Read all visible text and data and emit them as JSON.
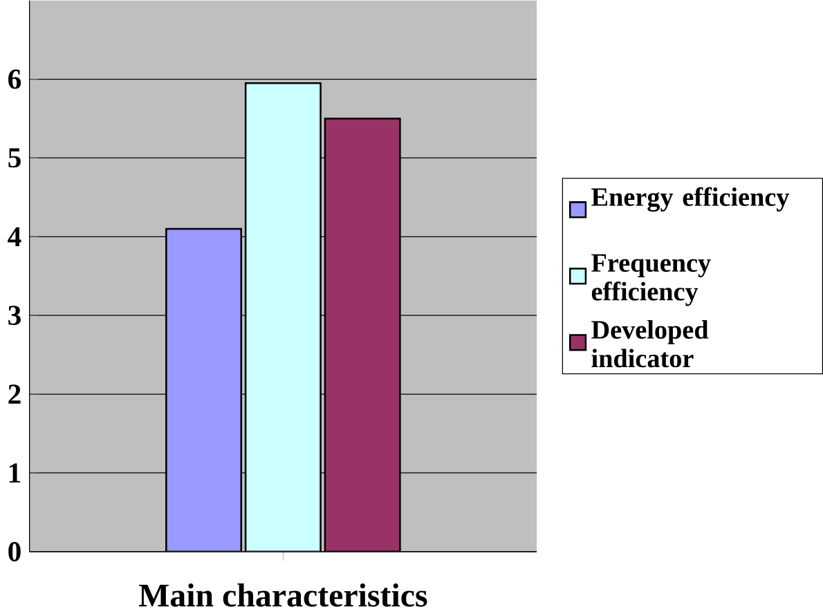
{
  "chart_data": {
    "type": "bar",
    "xlabel": "Main characteristics",
    "categories": [
      null
    ],
    "series": [
      {
        "name": "Energy efficiency",
        "color": "#9999ff",
        "values": [
          4.1
        ]
      },
      {
        "name": "Frequency efficiency",
        "color": "#ccffff",
        "values": [
          5.95
        ]
      },
      {
        "name": "Developed indicator",
        "color": "#993366",
        "values": [
          5.5
        ]
      }
    ],
    "ylim": [
      0,
      7
    ],
    "yticks": [
      0,
      1,
      2,
      3,
      4,
      5,
      6
    ],
    "grid": "y",
    "legend": "right"
  }
}
